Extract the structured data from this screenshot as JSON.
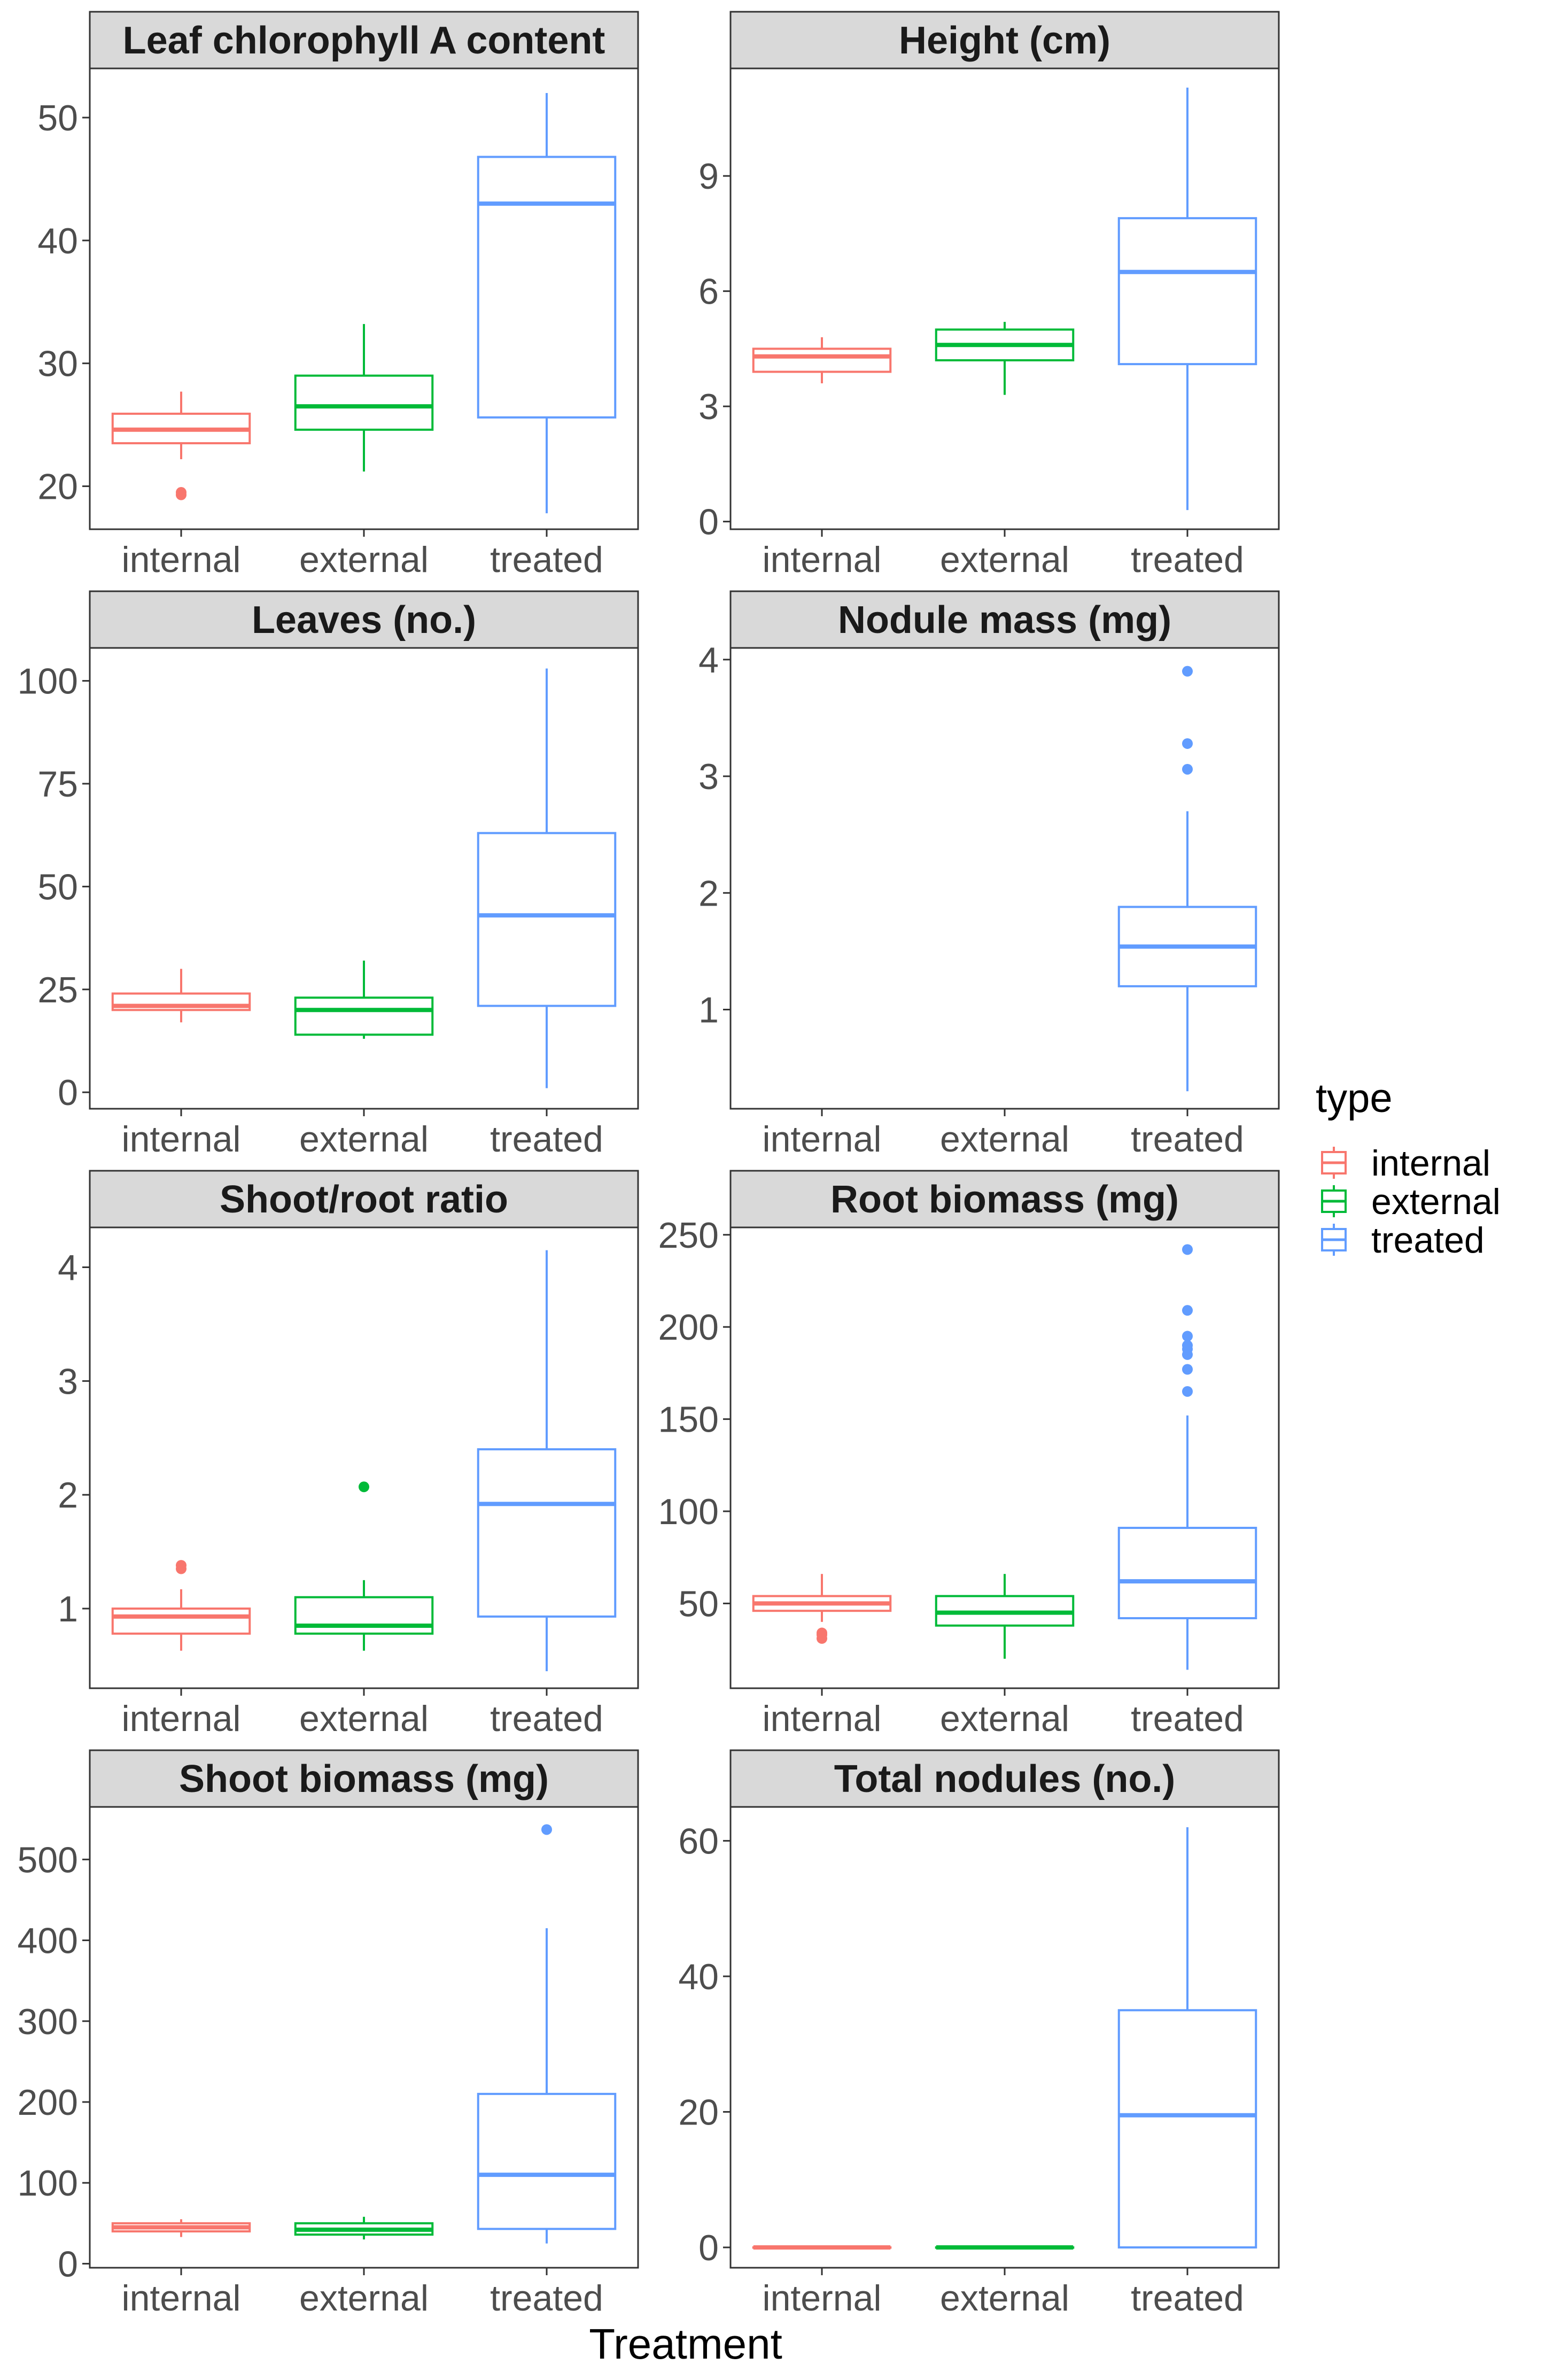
{
  "chart_data": {
    "type": "boxplot",
    "facet_layout": {
      "rows": 4,
      "cols": 2
    },
    "categories": [
      "internal",
      "external",
      "treated"
    ],
    "xlabel": "Treatment",
    "legend": {
      "title": "type",
      "position": "right",
      "entries": [
        {
          "label": "internal",
          "color": "#F8766D"
        },
        {
          "label": "external",
          "color": "#00BA38"
        },
        {
          "label": "treated",
          "color": "#619CFF"
        }
      ]
    },
    "panels": [
      {
        "title": "Leaf chlorophyll A content",
        "ylim": [
          16.5,
          54
        ],
        "yticks": [
          20,
          30,
          40,
          50
        ],
        "boxes": [
          {
            "category": "internal",
            "min": 22.2,
            "q1": 23.5,
            "median": 24.6,
            "q3": 25.9,
            "max": 27.7,
            "outliers": [
              19.3,
              19.5
            ]
          },
          {
            "category": "external",
            "min": 21.2,
            "q1": 24.6,
            "median": 26.5,
            "q3": 29.0,
            "max": 33.2,
            "outliers": []
          },
          {
            "category": "treated",
            "min": 17.8,
            "q1": 25.6,
            "median": 43.0,
            "q3": 46.8,
            "max": 52.0,
            "outliers": []
          }
        ]
      },
      {
        "title": "Height (cm)",
        "ylim": [
          -0.2,
          11.8
        ],
        "yticks": [
          0,
          3,
          6,
          9
        ],
        "boxes": [
          {
            "category": "internal",
            "min": 3.6,
            "q1": 3.9,
            "median": 4.3,
            "q3": 4.5,
            "max": 4.8,
            "outliers": []
          },
          {
            "category": "external",
            "min": 3.3,
            "q1": 4.2,
            "median": 4.6,
            "q3": 5.0,
            "max": 5.2,
            "outliers": []
          },
          {
            "category": "treated",
            "min": 0.3,
            "q1": 4.1,
            "median": 6.5,
            "q3": 7.9,
            "max": 11.3,
            "outliers": []
          }
        ]
      },
      {
        "title": "Leaves (no.)",
        "ylim": [
          -4,
          108
        ],
        "yticks": [
          0,
          25,
          50,
          75,
          100
        ],
        "boxes": [
          {
            "category": "internal",
            "min": 17,
            "q1": 20,
            "median": 21,
            "q3": 24,
            "max": 30,
            "outliers": []
          },
          {
            "category": "external",
            "min": 13,
            "q1": 14,
            "median": 20,
            "q3": 23,
            "max": 32,
            "outliers": []
          },
          {
            "category": "treated",
            "min": 1,
            "q1": 21,
            "median": 43,
            "q3": 63,
            "max": 103,
            "outliers": []
          }
        ]
      },
      {
        "title": "Nodule mass (mg)",
        "ylim": [
          0.15,
          4.1
        ],
        "yticks": [
          1,
          2,
          3,
          4
        ],
        "boxes": [
          {
            "category": "treated",
            "min": 0.3,
            "q1": 1.2,
            "median": 1.54,
            "q3": 1.88,
            "max": 2.7,
            "outliers": [
              3.06,
              3.28,
              3.9
            ]
          }
        ]
      },
      {
        "title": "Shoot/root ratio",
        "ylim": [
          0.3,
          4.35
        ],
        "yticks": [
          1,
          2,
          3,
          4
        ],
        "boxes": [
          {
            "category": "internal",
            "min": 0.63,
            "q1": 0.78,
            "median": 0.93,
            "q3": 1.0,
            "max": 1.17,
            "outliers": [
              1.35,
              1.38
            ]
          },
          {
            "category": "external",
            "min": 0.63,
            "q1": 0.78,
            "median": 0.85,
            "q3": 1.1,
            "max": 1.25,
            "outliers": [
              2.07
            ]
          },
          {
            "category": "treated",
            "min": 0.45,
            "q1": 0.93,
            "median": 1.92,
            "q3": 2.4,
            "max": 4.15,
            "outliers": []
          }
        ]
      },
      {
        "title": "Root biomass (mg)",
        "ylim": [
          4,
          254
        ],
        "yticks": [
          50,
          100,
          150,
          200,
          250
        ],
        "boxes": [
          {
            "category": "internal",
            "min": 40,
            "q1": 46,
            "median": 50,
            "q3": 54,
            "max": 66,
            "outliers": [
              31,
              33,
              34
            ]
          },
          {
            "category": "external",
            "min": 20,
            "q1": 38,
            "median": 45,
            "q3": 54,
            "max": 66,
            "outliers": []
          },
          {
            "category": "treated",
            "min": 14,
            "q1": 42,
            "median": 62,
            "q3": 91,
            "max": 152,
            "outliers": [
              165,
              177,
              185,
              188,
              190,
              195,
              209,
              242
            ]
          }
        ]
      },
      {
        "title": "Shoot biomass (mg)",
        "ylim": [
          -5,
          565
        ],
        "yticks": [
          0,
          100,
          200,
          300,
          400,
          500
        ],
        "boxes": [
          {
            "category": "internal",
            "min": 33,
            "q1": 40,
            "median": 45,
            "q3": 50,
            "max": 55,
            "outliers": []
          },
          {
            "category": "external",
            "min": 30,
            "q1": 36,
            "median": 42,
            "q3": 50,
            "max": 58,
            "outliers": []
          },
          {
            "category": "treated",
            "min": 25,
            "q1": 43,
            "median": 110,
            "q3": 210,
            "max": 415,
            "outliers": [
              537
            ]
          }
        ]
      },
      {
        "title": "Total nodules (no.)",
        "ylim": [
          -3,
          65
        ],
        "yticks": [
          0,
          20,
          40,
          60
        ],
        "boxes": [
          {
            "category": "internal",
            "min": 0,
            "q1": 0,
            "median": 0,
            "q3": 0,
            "max": 0,
            "outliers": []
          },
          {
            "category": "external",
            "min": 0,
            "q1": 0,
            "median": 0,
            "q3": 0,
            "max": 0,
            "outliers": []
          },
          {
            "category": "treated",
            "min": 0,
            "q1": 0,
            "median": 19.5,
            "q3": 35,
            "max": 62,
            "outliers": []
          }
        ]
      }
    ]
  }
}
